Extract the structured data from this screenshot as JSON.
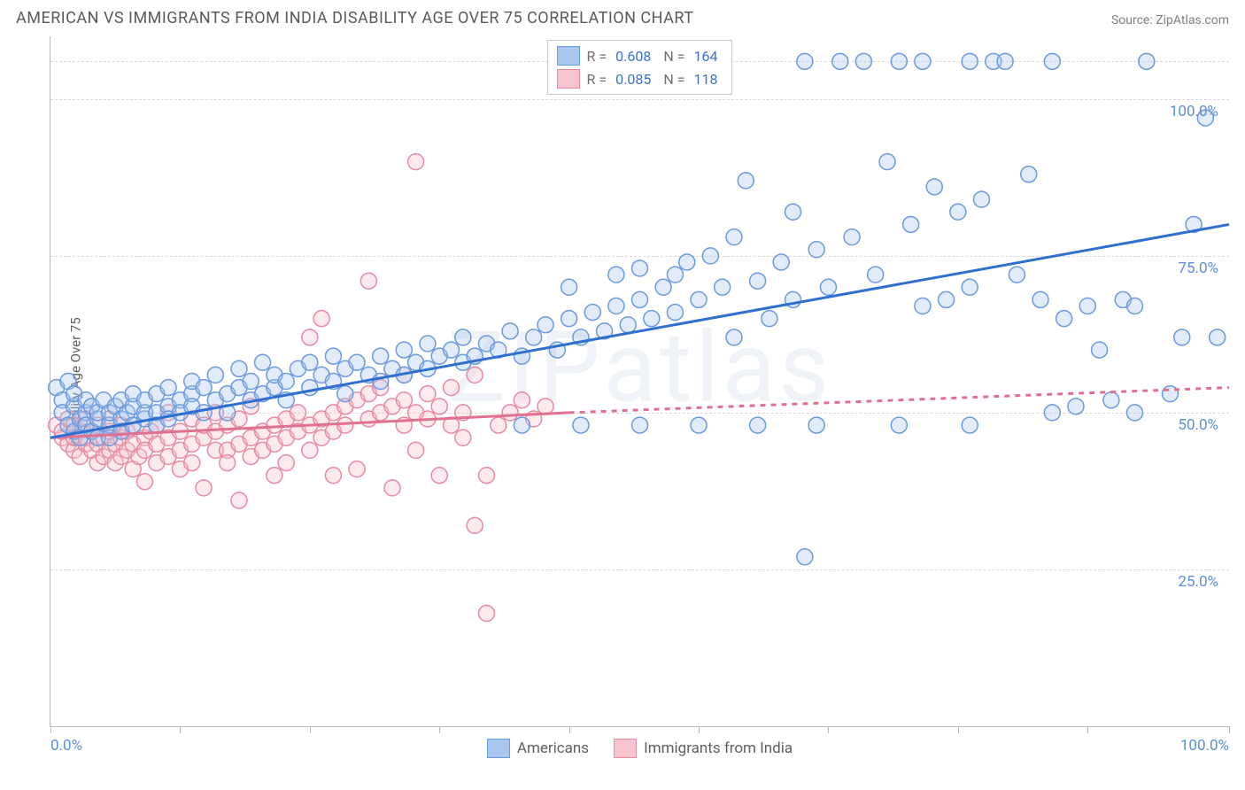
{
  "header": {
    "title": "AMERICAN VS IMMIGRANTS FROM INDIA DISABILITY AGE OVER 75 CORRELATION CHART",
    "source": "Source: ZipAtlas.com"
  },
  "chart": {
    "type": "scatter",
    "ylabel": "Disability Age Over 75",
    "xlim": [
      0,
      100
    ],
    "ylim": [
      0,
      110
    ],
    "xticks": [
      0,
      11,
      22,
      33,
      44,
      55,
      66,
      77,
      88,
      100
    ],
    "xtick_labels": {
      "0": "0.0%",
      "100": "100.0%"
    },
    "yticks": [
      25,
      50,
      75,
      100
    ],
    "ytick_labels": [
      "25.0%",
      "50.0%",
      "75.0%",
      "100.0%"
    ],
    "grid_color": "#d8d8d8",
    "axis_color": "#b8b8b8",
    "tick_label_color": "#5b8fd6",
    "background_color": "#ffffff",
    "marker_radius": 9,
    "marker_stroke_width": 1.5,
    "marker_fill_opacity": 0.35,
    "trend_line_width": 3,
    "watermark_text": "ZIPatlas"
  },
  "stat_legend": {
    "rows": [
      {
        "swatch_fill": "#a9c7ee",
        "swatch_stroke": "#6a9adf",
        "r_label": "R =",
        "r": "0.608",
        "n_label": "N =",
        "n": "164"
      },
      {
        "swatch_fill": "#f6c3cf",
        "swatch_stroke": "#e88aa0",
        "r_label": "R =",
        "r": "0.085",
        "n_label": "N =",
        "n": "118"
      }
    ]
  },
  "bottom_legend": {
    "items": [
      {
        "swatch_fill": "#a9c7ee",
        "swatch_stroke": "#6a9adf",
        "label": "Americans"
      },
      {
        "swatch_fill": "#f6c3cf",
        "swatch_stroke": "#e88aa0",
        "label": "Immigrants from India"
      }
    ]
  },
  "series": {
    "americans": {
      "fill": "#a9c7ee",
      "stroke": "#6a9adf",
      "trend_color": "#2f6fd0",
      "trend_start": [
        0,
        46
      ],
      "trend_end": [
        100,
        80
      ],
      "points": [
        [
          0.5,
          54
        ],
        [
          1,
          52
        ],
        [
          1,
          50
        ],
        [
          1.5,
          48
        ],
        [
          1.5,
          55
        ],
        [
          2,
          51
        ],
        [
          2,
          47
        ],
        [
          2,
          53
        ],
        [
          2.5,
          49
        ],
        [
          2.5,
          46
        ],
        [
          3,
          50
        ],
        [
          3,
          48
        ],
        [
          3,
          52
        ],
        [
          3.5,
          51
        ],
        [
          3.5,
          47
        ],
        [
          4,
          49
        ],
        [
          4,
          50
        ],
        [
          4,
          46
        ],
        [
          4.5,
          52
        ],
        [
          5,
          48
        ],
        [
          5,
          50
        ],
        [
          5,
          46
        ],
        [
          5.5,
          51
        ],
        [
          6,
          49
        ],
        [
          6,
          47
        ],
        [
          6,
          52
        ],
        [
          6.5,
          50
        ],
        [
          7,
          51
        ],
        [
          7,
          48
        ],
        [
          7,
          53
        ],
        [
          8,
          49
        ],
        [
          8,
          50
        ],
        [
          8,
          52
        ],
        [
          9,
          53
        ],
        [
          9,
          50
        ],
        [
          9,
          48
        ],
        [
          10,
          51
        ],
        [
          10,
          54
        ],
        [
          10,
          49
        ],
        [
          11,
          52
        ],
        [
          11,
          50
        ],
        [
          12,
          53
        ],
        [
          12,
          55
        ],
        [
          12,
          51
        ],
        [
          13,
          50
        ],
        [
          13,
          54
        ],
        [
          14,
          52
        ],
        [
          14,
          56
        ],
        [
          15,
          53
        ],
        [
          15,
          50
        ],
        [
          16,
          54
        ],
        [
          16,
          57
        ],
        [
          17,
          52
        ],
        [
          17,
          55
        ],
        [
          18,
          53
        ],
        [
          18,
          58
        ],
        [
          19,
          54
        ],
        [
          19,
          56
        ],
        [
          20,
          55
        ],
        [
          20,
          52
        ],
        [
          21,
          57
        ],
        [
          22,
          54
        ],
        [
          22,
          58
        ],
        [
          23,
          56
        ],
        [
          24,
          55
        ],
        [
          24,
          59
        ],
        [
          25,
          57
        ],
        [
          25,
          53
        ],
        [
          26,
          58
        ],
        [
          27,
          56
        ],
        [
          28,
          59
        ],
        [
          28,
          55
        ],
        [
          29,
          57
        ],
        [
          30,
          60
        ],
        [
          30,
          56
        ],
        [
          31,
          58
        ],
        [
          32,
          61
        ],
        [
          32,
          57
        ],
        [
          33,
          59
        ],
        [
          34,
          60
        ],
        [
          35,
          58
        ],
        [
          35,
          62
        ],
        [
          36,
          59
        ],
        [
          37,
          61
        ],
        [
          38,
          60
        ],
        [
          39,
          63
        ],
        [
          40,
          59
        ],
        [
          41,
          62
        ],
        [
          42,
          64
        ],
        [
          43,
          60
        ],
        [
          44,
          65
        ],
        [
          44,
          70
        ],
        [
          45,
          62
        ],
        [
          46,
          66
        ],
        [
          47,
          63
        ],
        [
          48,
          72
        ],
        [
          48,
          67
        ],
        [
          49,
          64
        ],
        [
          50,
          73
        ],
        [
          50,
          68
        ],
        [
          51,
          65
        ],
        [
          52,
          70
        ],
        [
          53,
          72
        ],
        [
          53,
          66
        ],
        [
          54,
          74
        ],
        [
          55,
          68
        ],
        [
          56,
          75
        ],
        [
          57,
          70
        ],
        [
          58,
          62
        ],
        [
          58,
          78
        ],
        [
          59,
          87
        ],
        [
          60,
          71
        ],
        [
          61,
          65
        ],
        [
          62,
          74
        ],
        [
          63,
          68
        ],
        [
          63,
          82
        ],
        [
          64,
          106
        ],
        [
          64,
          27
        ],
        [
          65,
          76
        ],
        [
          66,
          70
        ],
        [
          67,
          106
        ],
        [
          68,
          78
        ],
        [
          69,
          106
        ],
        [
          70,
          72
        ],
        [
          71,
          90
        ],
        [
          72,
          106
        ],
        [
          73,
          80
        ],
        [
          74,
          106
        ],
        [
          74,
          67
        ],
        [
          75,
          86
        ],
        [
          76,
          68
        ],
        [
          77,
          82
        ],
        [
          78,
          106
        ],
        [
          78,
          70
        ],
        [
          79,
          84
        ],
        [
          80,
          106
        ],
        [
          81,
          106
        ],
        [
          82,
          72
        ],
        [
          83,
          88
        ],
        [
          84,
          68
        ],
        [
          85,
          106
        ],
        [
          86,
          65
        ],
        [
          87,
          51
        ],
        [
          88,
          67
        ],
        [
          89,
          60
        ],
        [
          90,
          52
        ],
        [
          91,
          68
        ],
        [
          92,
          67
        ],
        [
          93,
          106
        ],
        [
          95,
          53
        ],
        [
          96,
          62
        ],
        [
          97,
          80
        ],
        [
          98,
          97
        ],
        [
          99,
          62
        ],
        [
          92,
          50
        ],
        [
          85,
          50
        ],
        [
          78,
          48
        ],
        [
          72,
          48
        ],
        [
          65,
          48
        ],
        [
          60,
          48
        ],
        [
          55,
          48
        ],
        [
          50,
          48
        ],
        [
          45,
          48
        ],
        [
          40,
          48
        ]
      ]
    },
    "immigrants": {
      "fill": "#f6c3cf",
      "stroke": "#e88aa0",
      "trend_color": "#e07090",
      "trend_start": [
        0,
        46
      ],
      "trend_solid_end": [
        44,
        50
      ],
      "trend_dash_end": [
        100,
        54
      ],
      "points": [
        [
          0.5,
          48
        ],
        [
          1,
          46
        ],
        [
          1,
          47
        ],
        [
          1.5,
          45
        ],
        [
          1.5,
          49
        ],
        [
          2,
          44
        ],
        [
          2,
          46
        ],
        [
          2,
          48
        ],
        [
          2.5,
          47
        ],
        [
          2.5,
          43
        ],
        [
          3,
          45
        ],
        [
          3,
          46
        ],
        [
          3,
          49
        ],
        [
          3.5,
          44
        ],
        [
          3.5,
          47
        ],
        [
          4,
          42
        ],
        [
          4,
          45
        ],
        [
          4,
          48
        ],
        [
          4.5,
          46
        ],
        [
          4.5,
          43
        ],
        [
          5,
          47
        ],
        [
          5,
          44
        ],
        [
          5,
          49
        ],
        [
          5.5,
          42
        ],
        [
          5.5,
          45
        ],
        [
          6,
          46
        ],
        [
          6,
          48
        ],
        [
          6,
          43
        ],
        [
          6.5,
          44
        ],
        [
          6.5,
          47
        ],
        [
          7,
          45
        ],
        [
          7,
          41
        ],
        [
          7,
          48
        ],
        [
          7.5,
          43
        ],
        [
          8,
          46
        ],
        [
          8,
          39
        ],
        [
          8,
          44
        ],
        [
          8.5,
          47
        ],
        [
          9,
          42
        ],
        [
          9,
          45
        ],
        [
          9,
          48
        ],
        [
          10,
          43
        ],
        [
          10,
          46
        ],
        [
          10,
          50
        ],
        [
          11,
          44
        ],
        [
          11,
          47
        ],
        [
          11,
          41
        ],
        [
          12,
          45
        ],
        [
          12,
          49
        ],
        [
          12,
          42
        ],
        [
          13,
          46
        ],
        [
          13,
          48
        ],
        [
          13,
          38
        ],
        [
          14,
          44
        ],
        [
          14,
          47
        ],
        [
          14,
          50
        ],
        [
          15,
          44
        ],
        [
          15,
          42
        ],
        [
          15,
          48
        ],
        [
          16,
          45
        ],
        [
          16,
          49
        ],
        [
          16,
          36
        ],
        [
          17,
          46
        ],
        [
          17,
          43
        ],
        [
          17,
          51
        ],
        [
          18,
          47
        ],
        [
          18,
          44
        ],
        [
          19,
          48
        ],
        [
          19,
          45
        ],
        [
          19,
          40
        ],
        [
          20,
          49
        ],
        [
          20,
          46
        ],
        [
          20,
          42
        ],
        [
          21,
          50
        ],
        [
          21,
          47
        ],
        [
          22,
          48
        ],
        [
          22,
          44
        ],
        [
          22,
          62
        ],
        [
          23,
          49
        ],
        [
          23,
          46
        ],
        [
          23,
          65
        ],
        [
          24,
          50
        ],
        [
          24,
          47
        ],
        [
          24,
          40
        ],
        [
          25,
          51
        ],
        [
          25,
          48
        ],
        [
          26,
          52
        ],
        [
          26,
          41
        ],
        [
          27,
          49
        ],
        [
          27,
          53
        ],
        [
          27,
          71
        ],
        [
          28,
          50
        ],
        [
          28,
          54
        ],
        [
          29,
          51
        ],
        [
          29,
          38
        ],
        [
          30,
          52
        ],
        [
          30,
          48
        ],
        [
          30,
          56
        ],
        [
          31,
          50
        ],
        [
          31,
          44
        ],
        [
          31,
          90
        ],
        [
          32,
          49
        ],
        [
          32,
          53
        ],
        [
          33,
          51
        ],
        [
          33,
          40
        ],
        [
          34,
          48
        ],
        [
          34,
          54
        ],
        [
          35,
          46
        ],
        [
          35,
          50
        ],
        [
          36,
          32
        ],
        [
          36,
          56
        ],
        [
          37,
          40
        ],
        [
          37,
          18
        ],
        [
          38,
          48
        ],
        [
          39,
          50
        ],
        [
          40,
          52
        ],
        [
          41,
          49
        ],
        [
          42,
          51
        ]
      ]
    }
  }
}
